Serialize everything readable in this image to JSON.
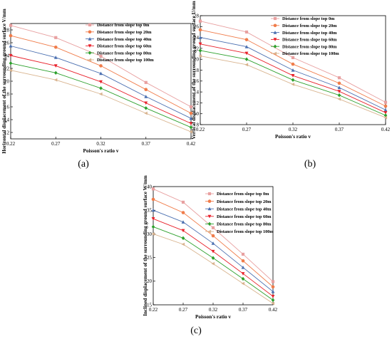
{
  "chart_data": [
    {
      "type": "line",
      "panel_label": "(a)",
      "x": [
        0.22,
        0.27,
        0.32,
        0.37,
        0.42
      ],
      "x_tick_labels": [
        "0.22",
        "0.27",
        "0.32",
        "0.37",
        "0.42"
      ],
      "xlabel": "Poisson's ratio  v",
      "ylabel": "Horizontal displacement of the surrounding ground surface V/mm",
      "ylim": [
        11,
        29
      ],
      "y_ticks": [
        12,
        14,
        16,
        18,
        20,
        22,
        24,
        26,
        28
      ],
      "series": [
        {
          "name": "Distance from slope top 0m",
          "values": [
            28.7,
            26.8,
            23.9,
            19.8,
            16.0
          ]
        },
        {
          "name": "Distance from slope top 20m",
          "values": [
            27.1,
            25.3,
            22.4,
            18.7,
            15.0
          ]
        },
        {
          "name": "Distance from slope top 40m",
          "values": [
            25.5,
            23.7,
            21.2,
            17.6,
            14.2
          ]
        },
        {
          "name": "Distance from slope top 60m",
          "values": [
            24.0,
            22.4,
            19.9,
            16.6,
            13.4
          ]
        },
        {
          "name": "Distance from slope top 80m",
          "values": [
            22.8,
            21.3,
            18.9,
            15.8,
            12.8
          ]
        },
        {
          "name": "Distance from slope top 100m",
          "values": [
            21.7,
            20.2,
            18.0,
            15.0,
            12.1
          ]
        }
      ]
    },
    {
      "type": "line",
      "panel_label": "(b)",
      "x": [
        0.22,
        0.27,
        0.32,
        0.37,
        0.42
      ],
      "x_tick_labels": [
        "0.22",
        "0.27",
        "0.32",
        "0.37",
        "0.42"
      ],
      "xlabel": "Poisson's ratio  v",
      "ylabel": "Vertical displacement of the surrounding ground surface U/mm",
      "ylim": [
        8,
        28
      ],
      "y_ticks": [
        8,
        10,
        12,
        14,
        16,
        18,
        20,
        22,
        24,
        26,
        28
      ],
      "series": [
        {
          "name": "Distance from slope top 0m",
          "values": [
            27.0,
            25.0,
            20.3,
            16.6,
            12.1
          ]
        },
        {
          "name": "Distance from slope top 20m",
          "values": [
            25.4,
            23.6,
            19.1,
            15.6,
            11.4
          ]
        },
        {
          "name": "Distance from slope top 40m",
          "values": [
            24.0,
            22.3,
            18.0,
            14.8,
            10.7
          ]
        },
        {
          "name": "Distance from slope top 60m",
          "values": [
            22.8,
            21.1,
            17.0,
            14.1,
            10.2
          ]
        },
        {
          "name": "Distance from slope top 80m",
          "values": [
            21.6,
            20.0,
            16.2,
            13.4,
            9.7
          ]
        },
        {
          "name": "Distance from slope top 100m",
          "values": [
            20.6,
            19.0,
            15.4,
            12.7,
            9.3
          ]
        }
      ]
    },
    {
      "type": "line",
      "panel_label": "(c)",
      "x": [
        0.22,
        0.27,
        0.32,
        0.37,
        0.42
      ],
      "x_tick_labels": [
        "0.22",
        "0.27",
        "0.32",
        "0.37",
        "0.42"
      ],
      "xlabel": "Poisson's ratio  v",
      "ylabel": "Inclined displacement of the surrounding ground surface W/mm",
      "ylim": [
        15,
        40
      ],
      "y_ticks": [
        15,
        20,
        25,
        30,
        35,
        40
      ],
      "series": [
        {
          "name": "Distance from slope top 0m",
          "values": [
            39.5,
            36.7,
            31.3,
            25.7,
            19.9
          ]
        },
        {
          "name": "Distance from slope top 20m",
          "values": [
            37.3,
            34.5,
            29.6,
            24.3,
            18.8
          ]
        },
        {
          "name": "Distance from slope top 40m",
          "values": [
            35.0,
            32.5,
            28.0,
            22.9,
            17.8
          ]
        },
        {
          "name": "Distance from slope top 60m",
          "values": [
            33.2,
            30.7,
            26.3,
            21.6,
            16.8
          ]
        },
        {
          "name": "Distance from slope top 80m",
          "values": [
            31.5,
            29.1,
            24.9,
            20.5,
            16.0
          ]
        },
        {
          "name": "Distance from slope top 100m",
          "values": [
            30.0,
            27.8,
            23.7,
            19.5,
            15.3
          ]
        }
      ]
    }
  ],
  "series_styles": [
    {
      "color": "#e8a0a0",
      "marker": "square"
    },
    {
      "color": "#f07c4a",
      "marker": "circle"
    },
    {
      "color": "#4a6fb0",
      "marker": "triangle-up"
    },
    {
      "color": "#e8202a",
      "marker": "triangle-down"
    },
    {
      "color": "#2ca02c",
      "marker": "diamond"
    },
    {
      "color": "#d9b48f",
      "marker": "triangle-left"
    }
  ]
}
